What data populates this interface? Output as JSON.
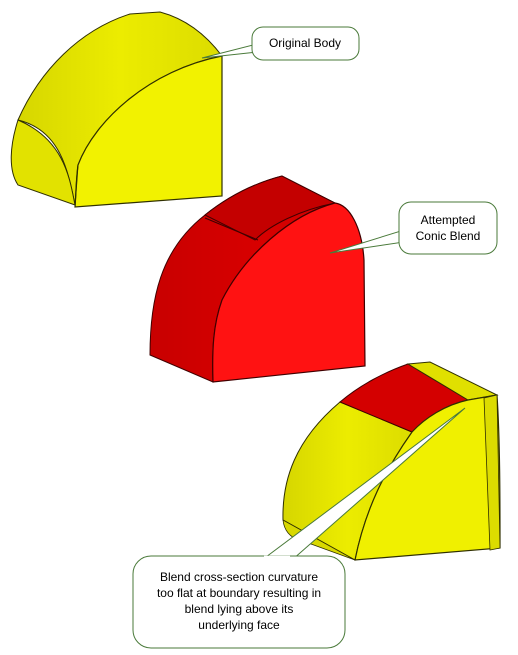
{
  "callouts": {
    "original": {
      "line1": "Original Body"
    },
    "attempted": {
      "line1": "Attempted",
      "line2": "Conic Blend"
    },
    "problem": {
      "line1": "Blend cross-section curvature",
      "line2": "too flat at boundary resulting in",
      "line3": "blend lying above its",
      "line4": "underlying face"
    }
  },
  "colors": {
    "yellow_face": "#f0f000",
    "yellow_side": "#d8d800",
    "yellow_dark": "#c8c800",
    "red_face": "#ff1010",
    "red_side": "#cc0000",
    "callout_border": "#4a7a3a",
    "edge": "#202000"
  }
}
